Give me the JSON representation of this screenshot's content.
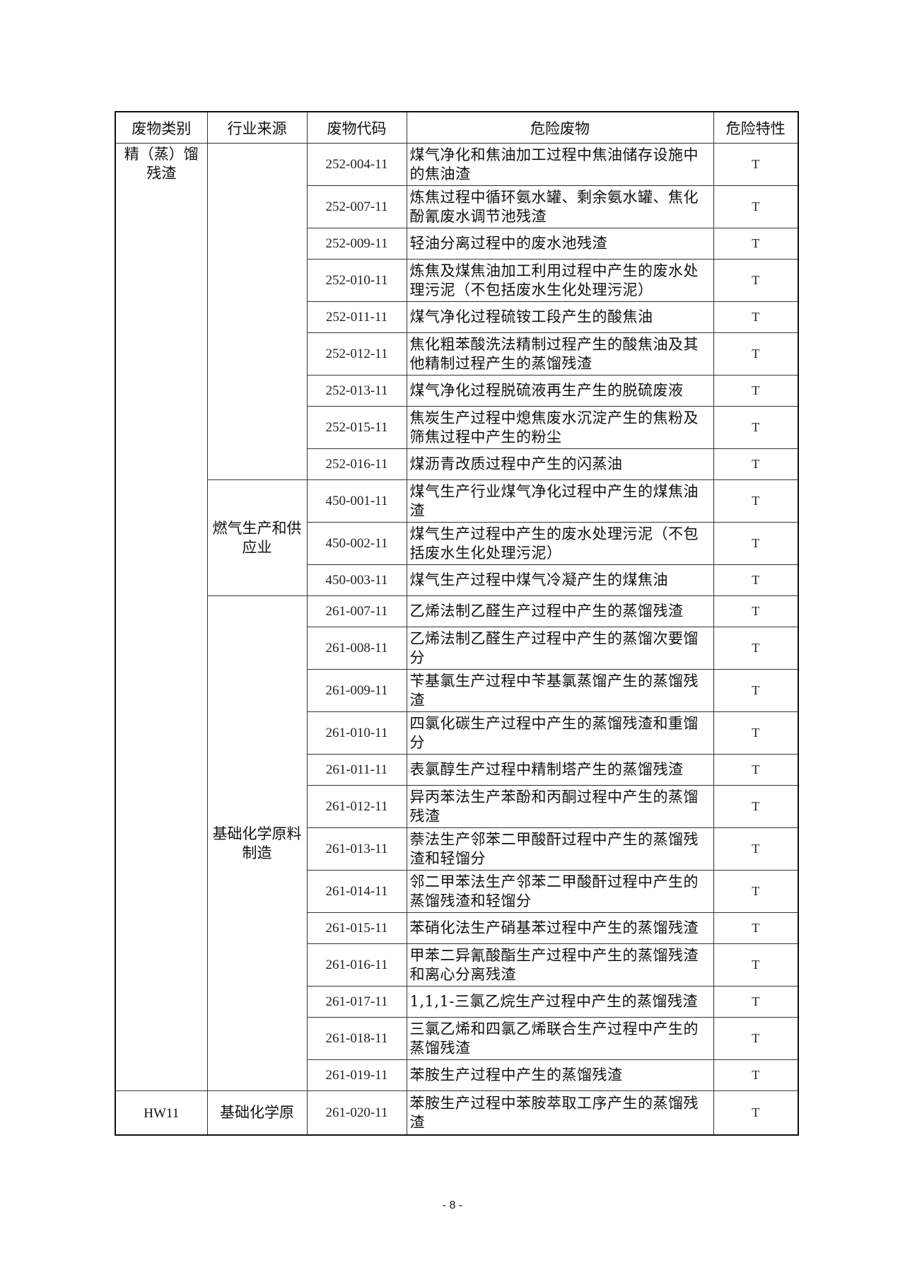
{
  "table": {
    "headers": [
      "废物类别",
      "行业来源",
      "废物代码",
      "危险废物",
      "危险特性"
    ],
    "groups": [
      {
        "category": "精（蒸）馏残渣",
        "category_span": 25,
        "source": "",
        "source_span": 9
      },
      {
        "source": "燃气生产和供应业",
        "source_span": 3
      },
      {
        "source": "基础化学原料制造",
        "source_span": 13
      },
      {
        "category": "HW11",
        "category_span": 1,
        "source": "基础化学原",
        "source_span": 1
      }
    ],
    "rows": [
      {
        "code": "252-004-11",
        "desc": "煤气净化和焦油加工过程中焦油储存设施中的焦油渣",
        "prop": "T",
        "lines": 2
      },
      {
        "code": "252-007-11",
        "desc": "炼焦过程中循环氨水罐、剩余氨水罐、焦化酚氰废水调节池残渣",
        "prop": "T",
        "lines": 2
      },
      {
        "code": "252-009-11",
        "desc": "轻油分离过程中的废水池残渣",
        "prop": "T",
        "lines": 1
      },
      {
        "code": "252-010-11",
        "desc": "炼焦及煤焦油加工利用过程中产生的废水处理污泥（不包括废水生化处理污泥）",
        "prop": "T",
        "lines": 2
      },
      {
        "code": "252-011-11",
        "desc": "煤气净化过程硫铵工段产生的酸焦油",
        "prop": "T",
        "lines": 1
      },
      {
        "code": "252-012-11",
        "desc": "焦化粗苯酸洗法精制过程产生的酸焦油及其他精制过程产生的蒸馏残渣",
        "prop": "T",
        "lines": 2
      },
      {
        "code": "252-013-11",
        "desc": "煤气净化过程脱硫液再生产生的脱硫废液",
        "prop": "T",
        "lines": 1
      },
      {
        "code": "252-015-11",
        "desc": "焦炭生产过程中熄焦废水沉淀产生的焦粉及筛焦过程中产生的粉尘",
        "prop": "T",
        "lines": 2
      },
      {
        "code": "252-016-11",
        "desc": "煤沥青改质过程中产生的闪蒸油",
        "prop": "T",
        "lines": 1
      },
      {
        "code": "450-001-11",
        "desc": "煤气生产行业煤气净化过程中产生的煤焦油渣",
        "prop": "T",
        "lines": 2
      },
      {
        "code": "450-002-11",
        "desc": "煤气生产过程中产生的废水处理污泥（不包括废水生化处理污泥）",
        "prop": "T",
        "lines": 2
      },
      {
        "code": "450-003-11",
        "desc": "煤气生产过程中煤气冷凝产生的煤焦油",
        "prop": "T",
        "lines": 1
      },
      {
        "code": "261-007-11",
        "desc": "乙烯法制乙醛生产过程中产生的蒸馏残渣",
        "prop": "T",
        "lines": 1
      },
      {
        "code": "261-008-11",
        "desc": "乙烯法制乙醛生产过程中产生的蒸馏次要馏分",
        "prop": "T",
        "lines": 2
      },
      {
        "code": "261-009-11",
        "desc": "苄基氯生产过程中苄基氯蒸馏产生的蒸馏残渣",
        "prop": "T",
        "lines": 2
      },
      {
        "code": "261-010-11",
        "desc": "四氯化碳生产过程中产生的蒸馏残渣和重馏分",
        "prop": "T",
        "lines": 2
      },
      {
        "code": "261-011-11",
        "desc": "表氯醇生产过程中精制塔产生的蒸馏残渣",
        "prop": "T",
        "lines": 1
      },
      {
        "code": "261-012-11",
        "desc": "异丙苯法生产苯酚和丙酮过程中产生的蒸馏残渣",
        "prop": "T",
        "lines": 2
      },
      {
        "code": "261-013-11",
        "desc": "萘法生产邻苯二甲酸酐过程中产生的蒸馏残渣和轻馏分",
        "prop": "T",
        "lines": 2
      },
      {
        "code": "261-014-11",
        "desc": "邻二甲苯法生产邻苯二甲酸酐过程中产生的蒸馏残渣和轻馏分",
        "prop": "T",
        "lines": 2
      },
      {
        "code": "261-015-11",
        "desc": "苯硝化法生产硝基苯过程中产生的蒸馏残渣",
        "prop": "T",
        "lines": 1
      },
      {
        "code": "261-016-11",
        "desc": "甲苯二异氰酸酯生产过程中产生的蒸馏残渣和离心分离残渣",
        "prop": "T",
        "lines": 2
      },
      {
        "code": "261-017-11",
        "desc": "1,1,1-三氯乙烷生产过程中产生的蒸馏残渣",
        "prop": "T",
        "lines": 1
      },
      {
        "code": "261-018-11",
        "desc": "三氯乙烯和四氯乙烯联合生产过程中产生的蒸馏残渣",
        "prop": "T",
        "lines": 2
      },
      {
        "code": "261-019-11",
        "desc": "苯胺生产过程中产生的蒸馏残渣",
        "prop": "T",
        "lines": 1
      },
      {
        "code": "261-020-11",
        "desc": "苯胺生产过程中苯胺萃取工序产生的蒸馏残渣",
        "prop": "T",
        "lines": 2
      }
    ]
  },
  "footer": {
    "page_number": "- 8 -"
  }
}
